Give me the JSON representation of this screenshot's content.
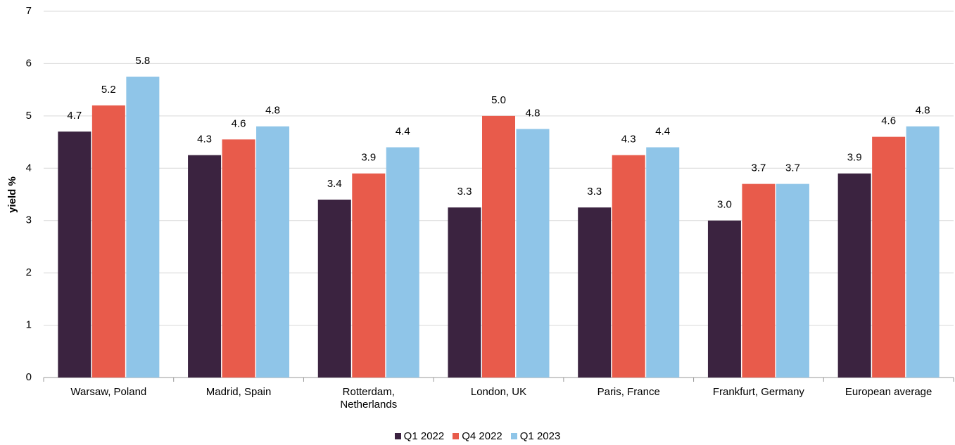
{
  "chart_data": {
    "type": "bar",
    "y_label": "yield %",
    "categories": [
      "Warsaw, Poland",
      "Madrid, Spain",
      "Rotterdam, Netherlands",
      "London, UK",
      "Paris, France",
      "Frankfurt, Germany",
      "European average"
    ],
    "series": [
      {
        "name": "Q1 2022",
        "color": "#3b2340",
        "values": [
          4.7,
          4.25,
          3.4,
          3.25,
          3.25,
          3.0,
          3.9
        ],
        "value_labels": [
          "4.7",
          "4.3",
          "3.4",
          "3.3",
          "3.3",
          "3.0",
          "3.9"
        ]
      },
      {
        "name": "Q4 2022",
        "color": "#e85b4b",
        "values": [
          5.2,
          4.55,
          3.9,
          5.0,
          4.25,
          3.7,
          4.6
        ],
        "value_labels": [
          "5.2",
          "4.6",
          "3.9",
          "5.0",
          "4.3",
          "3.7",
          "4.6"
        ]
      },
      {
        "name": "Q1 2023",
        "color": "#8fc5e8",
        "values": [
          5.75,
          4.8,
          4.4,
          4.75,
          4.4,
          3.7,
          4.8
        ],
        "value_labels": [
          "5.8",
          "4.8",
          "4.4",
          "4.8",
          "4.4",
          "3.7",
          "4.8"
        ]
      }
    ],
    "ylim": [
      0,
      7
    ],
    "yticks": [
      0,
      1,
      2,
      3,
      4,
      5,
      6,
      7
    ],
    "grid": true,
    "legend": "bottom"
  }
}
